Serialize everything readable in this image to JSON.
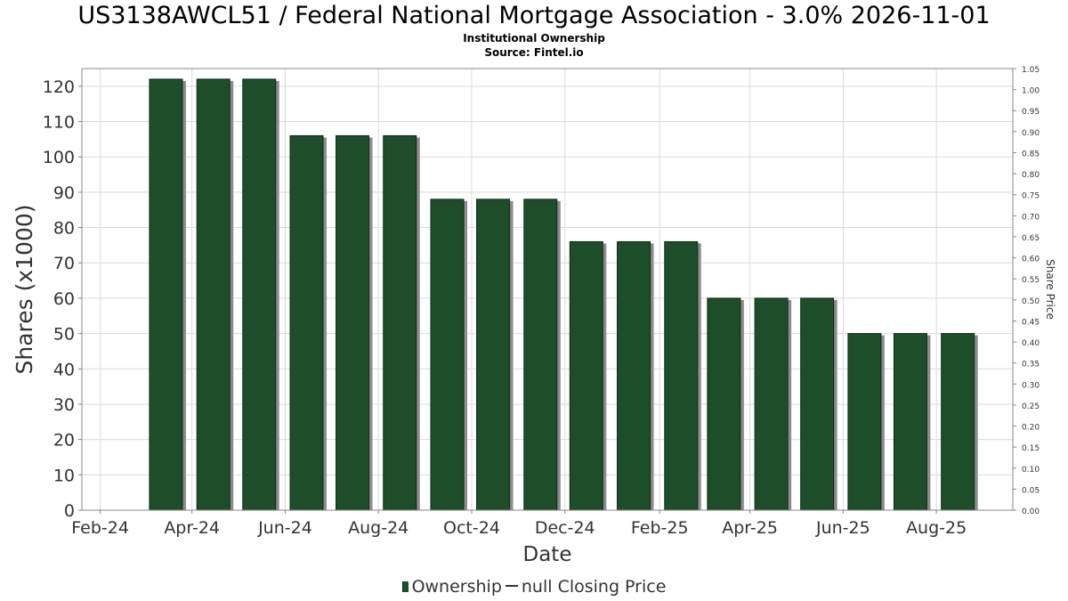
{
  "chart_title": "US3138AWCL51 / Federal National Mortgage Association - 3.0% 2026-11-01",
  "subtitle": "Institutional Ownership",
  "source": "Source: Fintel.io",
  "legend": {
    "ownership_label": "Ownership",
    "price_label": "null Closing Price"
  },
  "colors": {
    "bar": "#1f4d2b",
    "bar_shadow": "#8c8c8c",
    "grid": "#d9d9d9"
  },
  "chart_data": {
    "type": "bar",
    "xlabel": "Date",
    "ylabel": "Shares (x1000)",
    "y2label": "Share Price",
    "ylim": [
      0,
      125
    ],
    "y_ticks": [
      0,
      10,
      20,
      30,
      40,
      50,
      60,
      70,
      80,
      90,
      100,
      110,
      120
    ],
    "y2lim": [
      0,
      1.05
    ],
    "y2_ticks": [
      "0.00",
      "0.05",
      "0.10",
      "0.15",
      "0.20",
      "0.25",
      "0.30",
      "0.35",
      "0.40",
      "0.45",
      "0.50",
      "0.55",
      "0.60",
      "0.65",
      "0.70",
      "0.75",
      "0.80",
      "0.85",
      "0.90",
      "0.95",
      "1.00",
      "1.05"
    ],
    "x_ticks": [
      "Feb-24",
      "Apr-24",
      "Jun-24",
      "Aug-24",
      "Oct-24",
      "Dec-24",
      "Feb-25",
      "Apr-25",
      "Jun-25",
      "Aug-25"
    ],
    "x_start": "2024-01-20",
    "x_end": "2025-09-20",
    "grid": true,
    "legend_position": "bottom",
    "series": [
      {
        "name": "Ownership",
        "dates": [
          "2024-03-15",
          "2024-04-15",
          "2024-05-15",
          "2024-06-15",
          "2024-07-15",
          "2024-08-15",
          "2024-09-15",
          "2024-10-15",
          "2024-11-15",
          "2024-12-15",
          "2025-01-15",
          "2025-02-15",
          "2025-03-15",
          "2025-04-15",
          "2025-05-15",
          "2025-06-15",
          "2025-07-15",
          "2025-08-15"
        ],
        "values": [
          122,
          122,
          122,
          106,
          106,
          106,
          88,
          88,
          88,
          76,
          76,
          76,
          60,
          60,
          60,
          50,
          50,
          50
        ]
      }
    ]
  }
}
